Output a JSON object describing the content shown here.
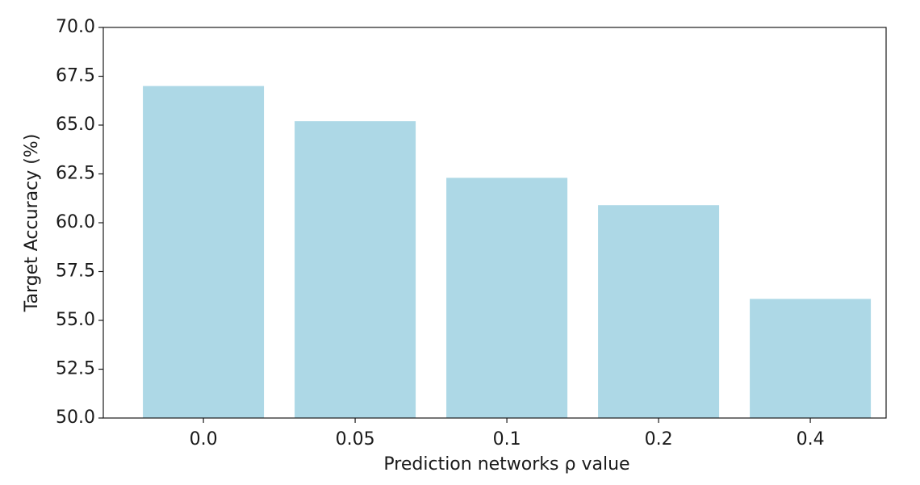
{
  "chart_data": {
    "type": "bar",
    "x_label": "Prediction networks ρ value",
    "y_label": "Target Accuracy (%)",
    "categories": [
      "0.0",
      "0.05",
      "0.1",
      "0.2",
      "0.4"
    ],
    "values": [
      67.0,
      65.2,
      62.3,
      60.9,
      56.1
    ],
    "color": "#add8e6",
    "ylim": [
      50,
      70
    ],
    "yticks": [
      {
        "value": 50,
        "label": "50.0"
      },
      52.5,
      {
        "value": 55,
        "label": "55.0"
      },
      57.5,
      {
        "value": 60,
        "label": "60.0"
      },
      62.5,
      {
        "value": 65,
        "label": "65.0"
      },
      67.5,
      {
        "value": 70,
        "label": "70.0"
      }
    ],
    "grid": false
  }
}
